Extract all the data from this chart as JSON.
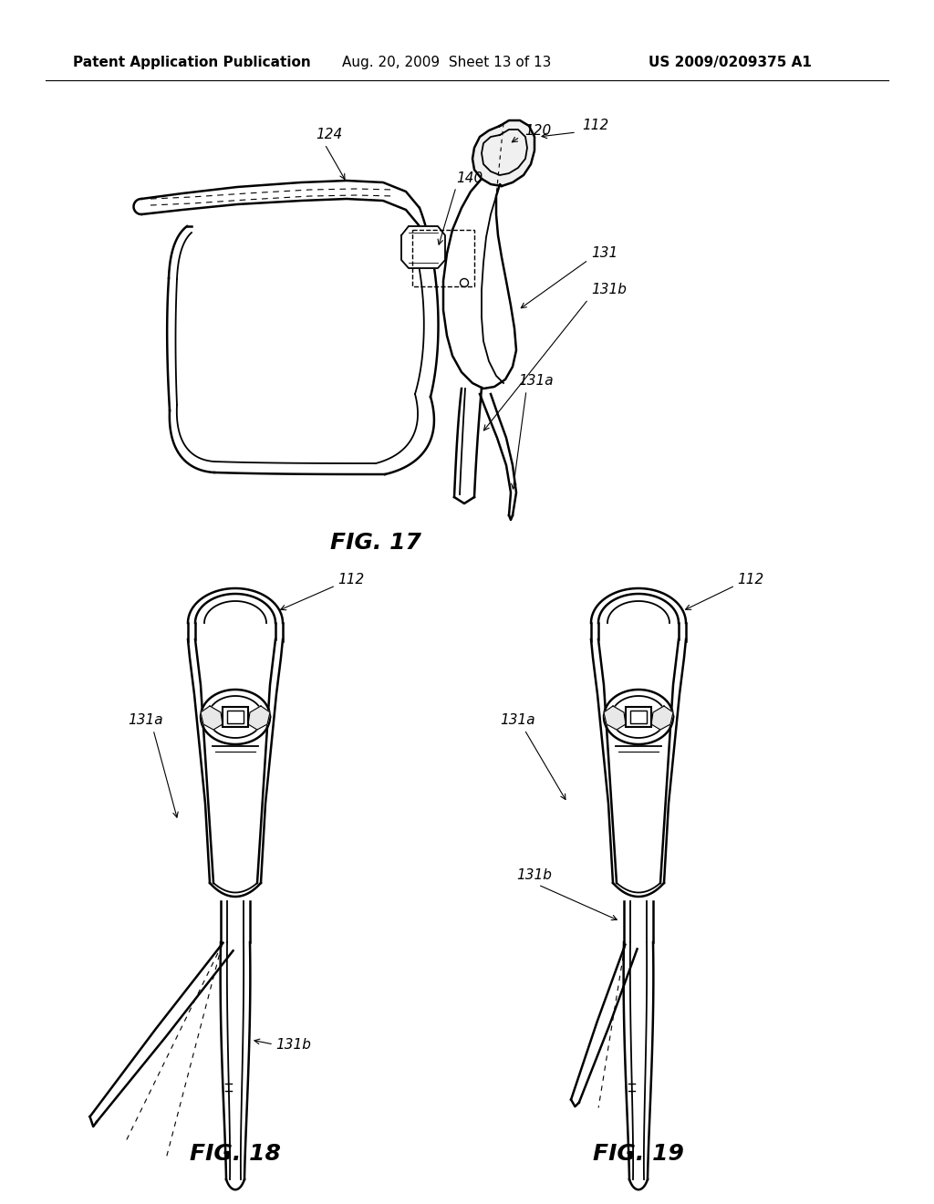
{
  "background_color": "#ffffff",
  "header_left": "Patent Application Publication",
  "header_center": "Aug. 20, 2009  Sheet 13 of 13",
  "header_right": "US 2009/0209375 A1",
  "header_fontsize": 11,
  "fig17_label": "FIG. 17",
  "fig18_label": "FIG. 18",
  "fig19_label": "FIG. 19",
  "fig_label_fontsize": 18,
  "ann_fs": 11,
  "line_color": "#000000",
  "lw_main": 1.8,
  "lw_thin": 1.0,
  "lw_inner": 1.3
}
